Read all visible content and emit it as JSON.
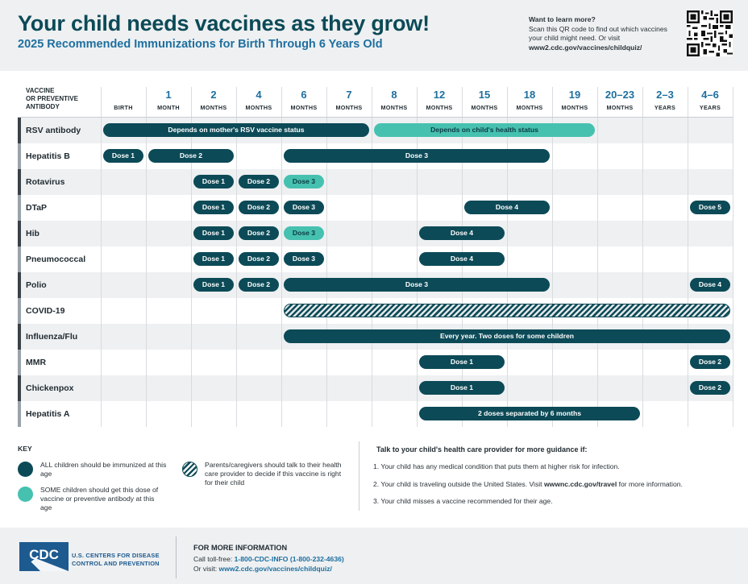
{
  "header": {
    "title": "Your child needs vaccines as they grow!",
    "subtitle": "2025 Recommended Immunizations for Birth Through 6 Years Old",
    "learn_heading": "Want to learn more?",
    "learn_text": "Scan this QR code to find out which vaccines your child might need. Or visit",
    "learn_url": "www2.cdc.gov/vaccines/childquiz/"
  },
  "table": {
    "row_header": [
      "VACCINE",
      "OR PREVENTIVE",
      "ANTIBODY"
    ],
    "columns": [
      {
        "num": "",
        "unit": "BIRTH"
      },
      {
        "num": "1",
        "unit": "MONTH"
      },
      {
        "num": "2",
        "unit": "MONTHS"
      },
      {
        "num": "4",
        "unit": "MONTHS"
      },
      {
        "num": "6",
        "unit": "MONTHS"
      },
      {
        "num": "7",
        "unit": "MONTHS"
      },
      {
        "num": "8",
        "unit": "MONTHS"
      },
      {
        "num": "12",
        "unit": "MONTHS"
      },
      {
        "num": "15",
        "unit": "MONTHS"
      },
      {
        "num": "18",
        "unit": "MONTHS"
      },
      {
        "num": "19",
        "unit": "MONTHS"
      },
      {
        "num": "20–23",
        "unit": "MONTHS"
      },
      {
        "num": "2–3",
        "unit": "YEARS"
      },
      {
        "num": "4–6",
        "unit": "YEARS"
      }
    ],
    "rows": [
      {
        "name": "RSV antibody",
        "bars": [
          {
            "label": "Depends on mother's RSV vaccine status",
            "type": "all",
            "from": 0,
            "to": 5
          },
          {
            "label": "Depends on child's health status",
            "type": "some",
            "from": 6,
            "to": 10
          }
        ]
      },
      {
        "name": "Hepatitis B",
        "bars": [
          {
            "label": "Dose 1",
            "type": "all",
            "from": 0,
            "to": 0
          },
          {
            "label": "Dose 2",
            "type": "all",
            "from": 1,
            "to": 2
          },
          {
            "label": "Dose 3",
            "type": "all",
            "from": 4,
            "to": 9
          }
        ]
      },
      {
        "name": "Rotavirus",
        "bars": [
          {
            "label": "Dose 1",
            "type": "all",
            "from": 2,
            "to": 2
          },
          {
            "label": "Dose 2",
            "type": "all",
            "from": 3,
            "to": 3
          },
          {
            "label": "Dose 3",
            "type": "some",
            "from": 4,
            "to": 4
          }
        ]
      },
      {
        "name": "DTaP",
        "bars": [
          {
            "label": "Dose 1",
            "type": "all",
            "from": 2,
            "to": 2
          },
          {
            "label": "Dose 2",
            "type": "all",
            "from": 3,
            "to": 3
          },
          {
            "label": "Dose 3",
            "type": "all",
            "from": 4,
            "to": 4
          },
          {
            "label": "Dose 4",
            "type": "all",
            "from": 8,
            "to": 9
          },
          {
            "label": "Dose 5",
            "type": "all",
            "from": 13,
            "to": 13
          }
        ]
      },
      {
        "name": "Hib",
        "bars": [
          {
            "label": "Dose 1",
            "type": "all",
            "from": 2,
            "to": 2
          },
          {
            "label": "Dose 2",
            "type": "all",
            "from": 3,
            "to": 3
          },
          {
            "label": "Dose 3",
            "type": "some",
            "from": 4,
            "to": 4
          },
          {
            "label": "Dose 4",
            "type": "all",
            "from": 7,
            "to": 8
          }
        ]
      },
      {
        "name": "Pneumococcal",
        "bars": [
          {
            "label": "Dose 1",
            "type": "all",
            "from": 2,
            "to": 2
          },
          {
            "label": "Dose 2",
            "type": "all",
            "from": 3,
            "to": 3
          },
          {
            "label": "Dose 3",
            "type": "all",
            "from": 4,
            "to": 4
          },
          {
            "label": "Dose 4",
            "type": "all",
            "from": 7,
            "to": 8
          }
        ]
      },
      {
        "name": "Polio",
        "bars": [
          {
            "label": "Dose 1",
            "type": "all",
            "from": 2,
            "to": 2
          },
          {
            "label": "Dose 2",
            "type": "all",
            "from": 3,
            "to": 3
          },
          {
            "label": "Dose 3",
            "type": "all",
            "from": 4,
            "to": 9
          },
          {
            "label": "Dose 4",
            "type": "all",
            "from": 13,
            "to": 13
          }
        ]
      },
      {
        "name": "COVID-19",
        "bars": [
          {
            "label": "",
            "type": "talk",
            "from": 4,
            "to": 13
          }
        ]
      },
      {
        "name": "Influenza/Flu",
        "bars": [
          {
            "label": "Every year. Two doses for some children",
            "type": "all",
            "from": 4,
            "to": 13
          }
        ]
      },
      {
        "name": "MMR",
        "bars": [
          {
            "label": "Dose 1",
            "type": "all",
            "from": 7,
            "to": 8
          },
          {
            "label": "Dose 2",
            "type": "all",
            "from": 13,
            "to": 13
          }
        ]
      },
      {
        "name": "Chickenpox",
        "bars": [
          {
            "label": "Dose 1",
            "type": "all",
            "from": 7,
            "to": 8
          },
          {
            "label": "Dose 2",
            "type": "all",
            "from": 13,
            "to": 13
          }
        ]
      },
      {
        "name": "Hepatitis A",
        "bars": [
          {
            "label": "2 doses separated by 6 months",
            "type": "all",
            "from": 7,
            "to": 11
          }
        ]
      }
    ]
  },
  "key": {
    "heading": "KEY",
    "all_text": "ALL children should be immunized at this age",
    "some_text": "SOME children should get this dose of vaccine or preventive antibody at this age",
    "talk_text": "Parents/caregivers should talk to their health care provider to decide if this vaccine is right for their child"
  },
  "guidance": {
    "heading": "Talk to your child's health care provider for more guidance if:",
    "item1": "1. Your child has any medical condition that puts them at higher risk for infection.",
    "item2_pre": "2. Your child is traveling outside the United States. Visit ",
    "item2_link": "wwwnc.cdc.gov/travel",
    "item2_post": " for more information.",
    "item3": "3. Your child misses a vaccine recommended for their age."
  },
  "footer": {
    "logo_text": "CDC",
    "agency_line1": "U.S. CENTERS FOR DISEASE",
    "agency_line2": "CONTROL AND PREVENTION",
    "heading": "FOR MORE INFORMATION",
    "call_label": "Call toll-free: ",
    "call_number": "1-800-CDC-INFO (1-800-232-4636)",
    "visit_label": "Or visit: ",
    "visit_url": "www2.cdc.gov/vaccines/childquiz/"
  },
  "colors": {
    "all": "#0c4a57",
    "some": "#46c1b0",
    "title": "#0c4a57",
    "accent_blue": "#1d6f9f"
  }
}
